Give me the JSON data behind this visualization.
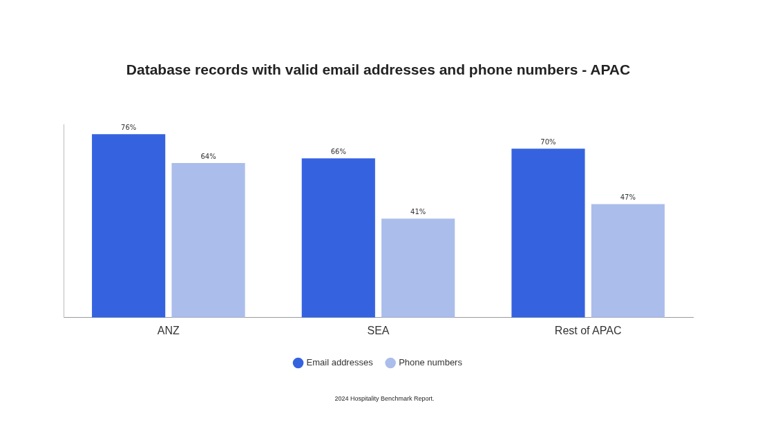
{
  "chart_data": {
    "type": "bar",
    "title": "Database records with valid email addresses and phone numbers - APAC",
    "categories": [
      "ANZ",
      "SEA",
      "Rest of APAC"
    ],
    "series": [
      {
        "name": "Email addresses",
        "color": "#3563e0",
        "values": [
          76,
          66,
          70
        ],
        "value_labels": [
          "76%",
          "66%",
          "70%"
        ]
      },
      {
        "name": "Phone numbers",
        "color": "#abbdeb",
        "values": [
          64,
          41,
          47
        ],
        "value_labels": [
          "64%",
          "41%",
          "47%"
        ]
      }
    ],
    "data_labels": true,
    "grid": false,
    "legend": "bottom",
    "annotations": [
      "2024 Hospitality Benchmark Report."
    ]
  }
}
